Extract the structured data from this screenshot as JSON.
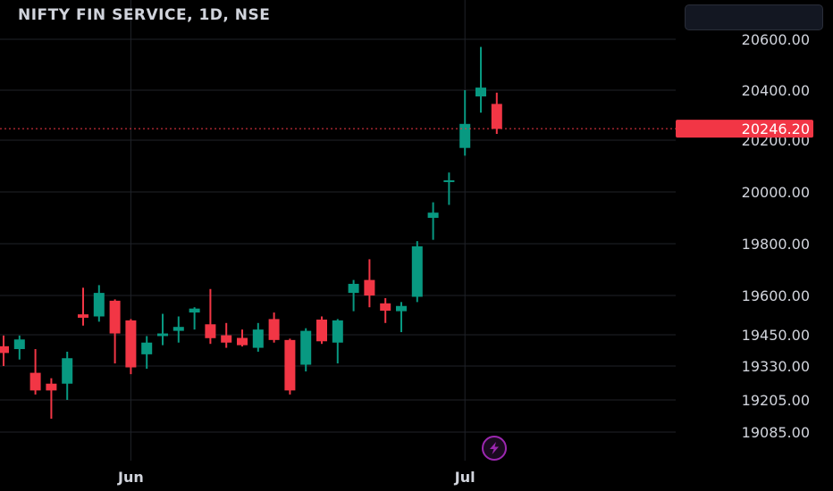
{
  "header": {
    "title": "NIFTY FIN SERVICE, 1D, NSE"
  },
  "icons": {
    "flash": "lightning-icon"
  },
  "colors": {
    "background": "#000000",
    "up": "#089981",
    "down": "#f23645",
    "grid": "#1f2229",
    "text": "#d1d4dc",
    "last_price": "#f23645",
    "flash_ring": "#9c27b0"
  },
  "chart_data": {
    "type": "candlestick",
    "symbol": "NIFTY FIN SERVICE",
    "interval": "1D",
    "exchange": "NSE",
    "ylim": [
      19020,
      20660
    ],
    "y_ticks": [
      {
        "value": 20600,
        "label": "20600.00"
      },
      {
        "value": 20400,
        "label": "20400.00"
      },
      {
        "value": 20200,
        "label": "20200.00"
      },
      {
        "value": 20000,
        "label": "20000.00"
      },
      {
        "value": 19800,
        "label": "19800.00"
      },
      {
        "value": 19600,
        "label": "19600.00"
      },
      {
        "value": 19450,
        "label": "19450.00"
      },
      {
        "value": 19330,
        "label": "19330.00"
      },
      {
        "value": 19205,
        "label": "19205.00"
      },
      {
        "value": 19085,
        "label": "19085.00"
      }
    ],
    "x_ticks": [
      {
        "index": 8,
        "label": "Jun"
      },
      {
        "index": 29,
        "label": "Jul"
      }
    ],
    "last_price": {
      "value": 20246.2,
      "label": "20246.20"
    },
    "candles": [
      {
        "open": 19406,
        "high": 19447,
        "low": 19330,
        "close": 19380
      },
      {
        "open": 19395,
        "high": 19447,
        "low": 19355,
        "close": 19432
      },
      {
        "open": 19305,
        "high": 19395,
        "low": 19225,
        "close": 19240
      },
      {
        "open": 19265,
        "high": 19285,
        "low": 19135,
        "close": 19240
      },
      {
        "open": 19265,
        "high": 19385,
        "low": 19205,
        "close": 19360
      },
      {
        "open": 19528,
        "high": 19630,
        "low": 19485,
        "close": 19515
      },
      {
        "open": 19520,
        "high": 19640,
        "low": 19500,
        "close": 19610
      },
      {
        "open": 19580,
        "high": 19585,
        "low": 19340,
        "close": 19455
      },
      {
        "open": 19505,
        "high": 19510,
        "low": 19300,
        "close": 19325
      },
      {
        "open": 19375,
        "high": 19445,
        "low": 19320,
        "close": 19420
      },
      {
        "open": 19445,
        "high": 19530,
        "low": 19410,
        "close": 19455
      },
      {
        "open": 19465,
        "high": 19520,
        "low": 19420,
        "close": 19480
      },
      {
        "open": 19535,
        "high": 19555,
        "low": 19470,
        "close": 19550
      },
      {
        "open": 19490,
        "high": 19625,
        "low": 19415,
        "close": 19437
      },
      {
        "open": 19448,
        "high": 19495,
        "low": 19400,
        "close": 19420
      },
      {
        "open": 19438,
        "high": 19470,
        "low": 19405,
        "close": 19410
      },
      {
        "open": 19400,
        "high": 19495,
        "low": 19385,
        "close": 19470
      },
      {
        "open": 19510,
        "high": 19535,
        "low": 19420,
        "close": 19430
      },
      {
        "open": 19430,
        "high": 19435,
        "low": 19225,
        "close": 19240
      },
      {
        "open": 19335,
        "high": 19475,
        "low": 19310,
        "close": 19465
      },
      {
        "open": 19508,
        "high": 19520,
        "low": 19415,
        "close": 19425
      },
      {
        "open": 19420,
        "high": 19510,
        "low": 19340,
        "close": 19505
      },
      {
        "open": 19610,
        "high": 19660,
        "low": 19540,
        "close": 19645
      },
      {
        "open": 19660,
        "high": 19740,
        "low": 19555,
        "close": 19600
      },
      {
        "open": 19570,
        "high": 19590,
        "low": 19495,
        "close": 19542
      },
      {
        "open": 19540,
        "high": 19575,
        "low": 19460,
        "close": 19560
      },
      {
        "open": 19595,
        "high": 19810,
        "low": 19575,
        "close": 19790
      },
      {
        "open": 19900,
        "high": 19960,
        "low": 19815,
        "close": 19920
      },
      {
        "open": 20040,
        "high": 20075,
        "low": 19950,
        "close": 20045
      },
      {
        "open": 20170,
        "high": 20400,
        "low": 20140,
        "close": 20265
      },
      {
        "open": 20375,
        "high": 20570,
        "low": 20310,
        "close": 20410
      },
      {
        "open": 20345,
        "high": 20390,
        "low": 20225,
        "close": 20245
      }
    ]
  }
}
